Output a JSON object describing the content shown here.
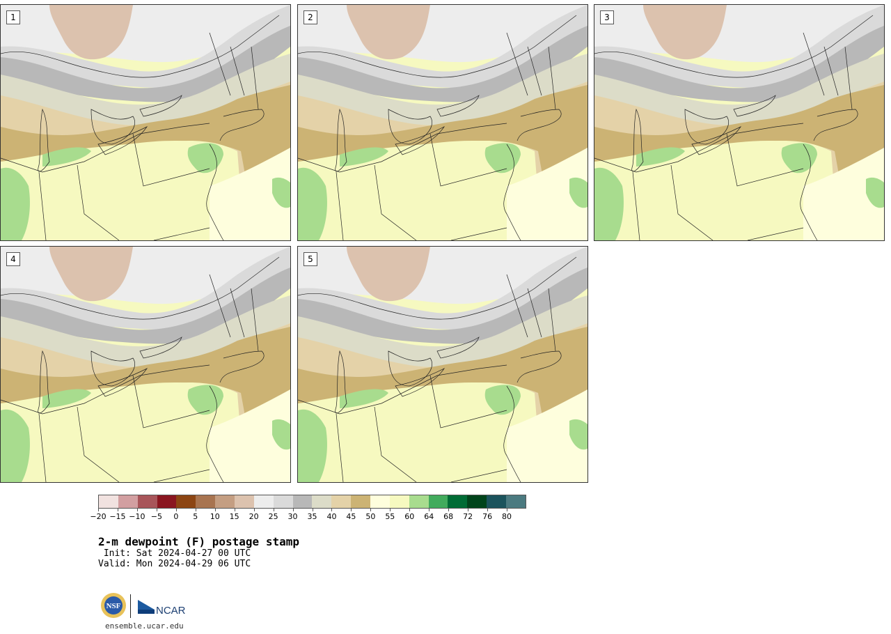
{
  "panels": [
    {
      "label": "1"
    },
    {
      "label": "2"
    },
    {
      "label": "3"
    },
    {
      "label": "4"
    },
    {
      "label": "5"
    }
  ],
  "colorbar": {
    "boundaries": [
      "−20",
      "−15",
      "−10",
      "−5",
      "0",
      "5",
      "10",
      "15",
      "20",
      "25",
      "30",
      "35",
      "40",
      "45",
      "50",
      "55",
      "60",
      "64",
      "68",
      "72",
      "76",
      "80"
    ],
    "colors": [
      "#f1e2e0",
      "#d29fa1",
      "#a8555a",
      "#8a1620",
      "#8c4513",
      "#a87450",
      "#c49e82",
      "#dcc2ae",
      "#ededed",
      "#dadada",
      "#b8b8b8",
      "#dcdcc8",
      "#e4d2a8",
      "#ccb374",
      "#fefedd",
      "#f6f9c0",
      "#a8dc8e",
      "#42ab5d",
      "#006c35",
      "#00441b",
      "#1b535c",
      "#4b7a80"
    ]
  },
  "title": "2-m dewpoint (F) postage stamp",
  "init_line": " Init: Sat 2024-04-27 00 UTC",
  "valid_line": "Valid: Mon 2024-04-29 06 UTC",
  "logos": {
    "nsf_text": "NSF",
    "ncar_text": "NCAR"
  },
  "website": "ensemble.ucar.edu"
}
